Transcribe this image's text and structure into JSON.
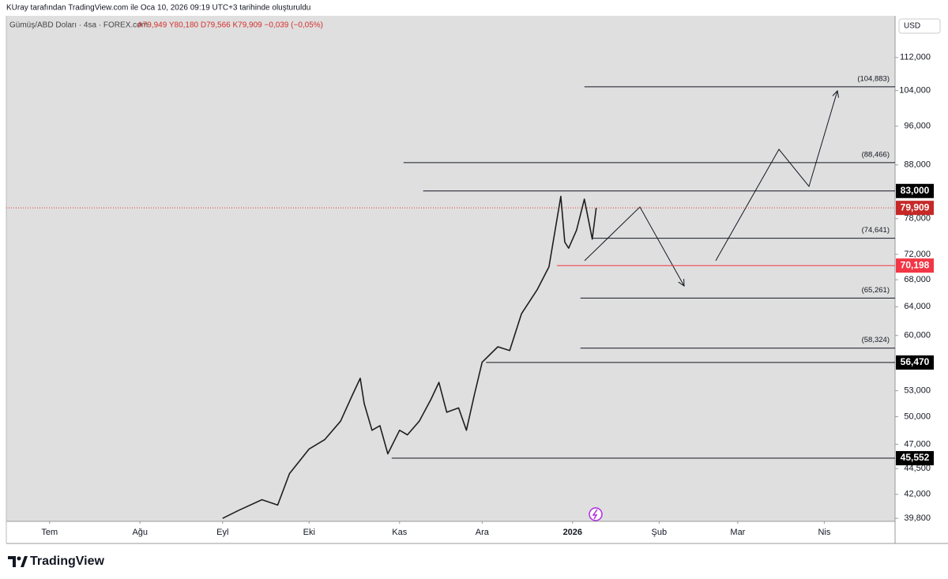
{
  "header": {
    "credit": "KUray tarafından TradingView.com ile Oca 10, 2026 09:19 UTC+3 tarihinde oluşturuldu",
    "symbol": "Gümüş/ABD Doları · 4sa · FOREX.com",
    "ohlc": "A79,949 Y80,180 D79,566 K79,909 −0,039 (−0,05%)"
  },
  "chart_data": {
    "type": "line",
    "currency": "USD",
    "log_scale": true,
    "color": "#1e1e1e",
    "x": [
      44,
      48,
      54,
      58,
      61,
      66,
      70,
      74,
      77,
      79,
      80,
      82,
      84,
      86,
      89,
      91,
      94,
      97,
      99,
      101,
      104,
      106,
      108,
      110,
      114,
      117,
      120,
      124,
      127,
      130,
      131,
      132,
      134,
      136,
      138,
      139
    ],
    "values": [
      39800,
      40500,
      41500,
      41000,
      44000,
      46500,
      47500,
      49500,
      52500,
      54500,
      51500,
      48500,
      49000,
      46000,
      48500,
      48000,
      49500,
      52000,
      54000,
      50500,
      51000,
      48500,
      52500,
      56500,
      58500,
      58000,
      63000,
      66500,
      70000,
      82000,
      74000,
      73000,
      76000,
      81500,
      74500,
      79909
    ],
    "xlim": [
      -11,
      215
    ],
    "ylim": [
      39530,
      123000
    ],
    "xticks": [
      {
        "value": 0,
        "label": "Tem"
      },
      {
        "value": 23,
        "label": "Ağu"
      },
      {
        "value": 44,
        "label": "Eyl"
      },
      {
        "value": 66,
        "label": "Eki"
      },
      {
        "value": 89,
        "label": "Kas"
      },
      {
        "value": 110,
        "label": "Ara"
      },
      {
        "value": 133,
        "label": "2026"
      },
      {
        "value": 155,
        "label": "Şub"
      },
      {
        "value": 175,
        "label": "Mar"
      },
      {
        "value": 197,
        "label": "Nis"
      }
    ],
    "yticks": [
      {
        "value": 112000,
        "label": "112,000"
      },
      {
        "value": 104000,
        "label": "104,000"
      },
      {
        "value": 96000,
        "label": "96,000"
      },
      {
        "value": 88000,
        "label": "88,000"
      },
      {
        "value": 78000,
        "label": "78,000"
      },
      {
        "value": 72000,
        "label": "72,000"
      },
      {
        "value": 68000,
        "label": "68,000"
      },
      {
        "value": 64000,
        "label": "64,000"
      },
      {
        "value": 60000,
        "label": "60,000"
      },
      {
        "value": 53000,
        "label": "53,000"
      },
      {
        "value": 50000,
        "label": "50,000"
      },
      {
        "value": 47000,
        "label": "47,000"
      },
      {
        "value": 44500,
        "label": "44,500"
      },
      {
        "value": 42000,
        "label": "42,000"
      },
      {
        "value": 39800,
        "label": "39,800"
      }
    ],
    "levels": [
      {
        "value": 104883,
        "label": "(104,883)",
        "start": 136,
        "style": "plain"
      },
      {
        "value": 88466,
        "label": "(88,466)",
        "start": 90,
        "style": "plain"
      },
      {
        "value": 83000,
        "label": "83,000",
        "start": 95,
        "style": "boxed"
      },
      {
        "value": 74641,
        "label": "(74,641)",
        "start": 138,
        "style": "plain"
      },
      {
        "value": 70198,
        "label": "70,198",
        "start": 129,
        "style": "red"
      },
      {
        "value": 65261,
        "label": "(65,261)",
        "start": 135,
        "style": "plain"
      },
      {
        "value": 58324,
        "label": "(58,324)",
        "start": 135,
        "style": "plain"
      },
      {
        "value": 56470,
        "label": "56,470",
        "start": 111,
        "style": "boxed"
      },
      {
        "value": 45552,
        "label": "45,552",
        "start": 87,
        "style": "boxed"
      }
    ],
    "last_price": {
      "value": 79909,
      "label": "79,909"
    }
  },
  "footer": {
    "brand": "TradingView"
  }
}
